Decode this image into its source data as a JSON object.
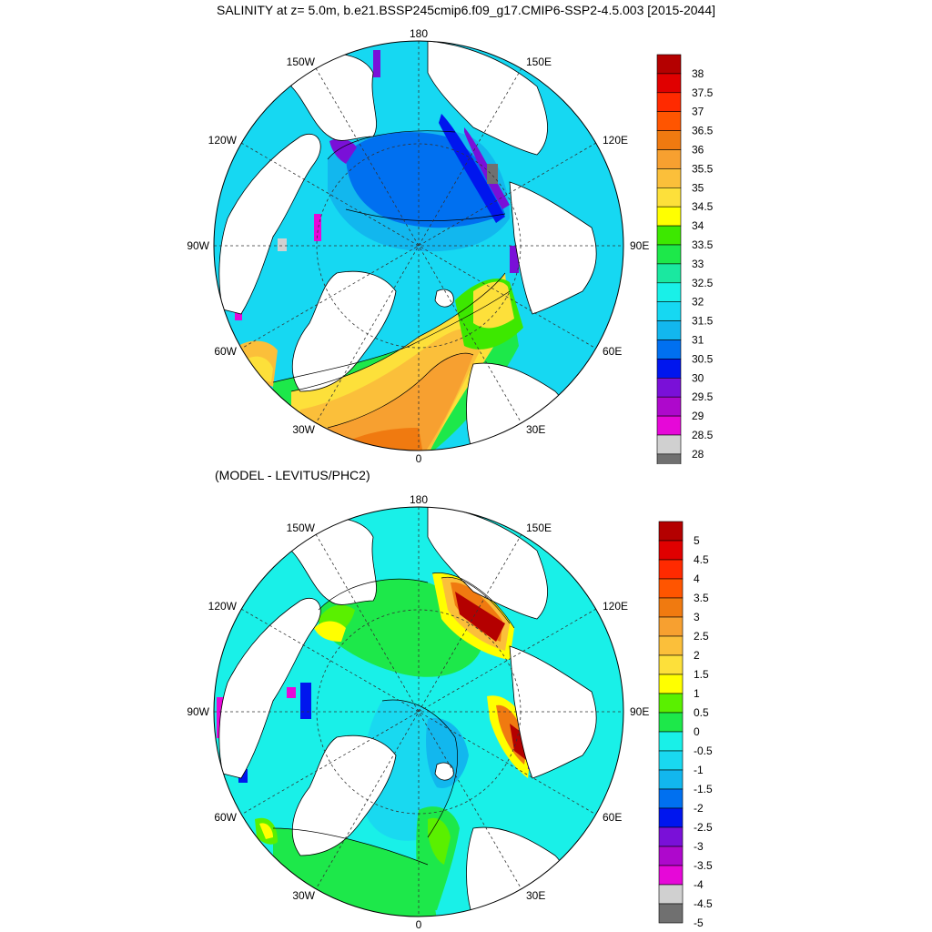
{
  "title": "SALINITY at z=   5.0m, b.e21.BSSP245cmip6.f09_g17.CMIP6-SSP2-4.5.003 [2015-2044]",
  "subtitle": "(MODEL - LEVITUS/PHC2)",
  "longitude_labels": {
    "top": "180",
    "bottom": "0",
    "left": "90W",
    "right": "90E",
    "upper_left_outer": "150W",
    "upper_left_inner": "120W",
    "upper_right_outer": "150E",
    "upper_right_inner": "120E",
    "lower_left_inner": "60W",
    "lower_left_outer": "30W",
    "lower_right_inner": "60E",
    "lower_right_outer": "30E"
  },
  "colors": {
    "land": "#ffffff",
    "coast": "#000000",
    "grid": "#555555"
  },
  "colorbar_top": {
    "labels": [
      "38",
      "37.5",
      "37",
      "36.5",
      "36",
      "35.5",
      "35",
      "34.5",
      "34",
      "33.5",
      "33",
      "32.5",
      "32",
      "31.5",
      "31",
      "30.5",
      "30",
      "29.5",
      "29",
      "28.5",
      "28"
    ],
    "colors": [
      "#b40000",
      "#e00000",
      "#ff2a00",
      "#ff5500",
      "#f07a10",
      "#f7a030",
      "#fbbf3a",
      "#fde03a",
      "#ffff00",
      "#3de800",
      "#1de84a",
      "#1ae8a0",
      "#19f0e8",
      "#16d8f2",
      "#12b7ee",
      "#0070f0",
      "#0016ee",
      "#7a10d8",
      "#ae08cc",
      "#e608d8",
      "#d0d0d0",
      "#707070"
    ]
  },
  "colorbar_bottom": {
    "labels": [
      "5",
      "4.5",
      "4",
      "3.5",
      "3",
      "2.5",
      "2",
      "1.5",
      "1",
      "0.5",
      "0",
      "-0.5",
      "-1",
      "-1.5",
      "-2",
      "-2.5",
      "-3",
      "-3.5",
      "-4",
      "-4.5",
      "-5"
    ],
    "colors": [
      "#b40000",
      "#e00000",
      "#ff2a00",
      "#ff5500",
      "#f07a10",
      "#f7a030",
      "#fbbf3a",
      "#fde03a",
      "#ffff00",
      "#5af000",
      "#1de84a",
      "#19f0e8",
      "#19d9f0",
      "#12b7ee",
      "#0070f0",
      "#0016ee",
      "#7a10d8",
      "#ae08cc",
      "#e608d8",
      "#d0d0d0",
      "#707070"
    ]
  }
}
